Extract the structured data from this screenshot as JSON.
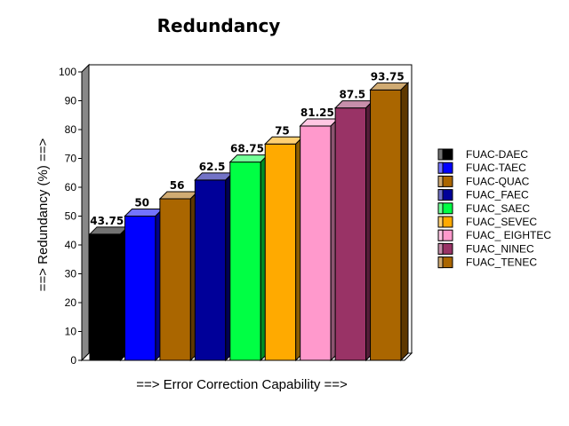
{
  "chart_data": {
    "type": "bar",
    "title": "Redundancy",
    "xlabel": "==> Error Correction Capability ==>",
    "ylabel": "==> Redundancy (%) ==>",
    "ylim": [
      0,
      100
    ],
    "yticks": [
      0,
      10,
      20,
      30,
      40,
      50,
      60,
      70,
      80,
      90,
      100
    ],
    "grid": false,
    "legend_position": "right",
    "categories": [
      "FUAC-DAEC",
      "FUAC-TAEC",
      "FUAC-QUAC",
      "FUAC_FAEC",
      "FUAC_SAEC",
      "FUAC_SEVEC",
      "FUAC_ EIGHTEC",
      "FUAC_NINEC",
      "FUAC_TENEC"
    ],
    "values": [
      43.75,
      50,
      56,
      62.5,
      68.75,
      75,
      81.25,
      87.5,
      93.75
    ],
    "value_labels": [
      "43.75",
      "50",
      "56",
      "62.5",
      "68.75",
      "75",
      "81.25",
      "87.5",
      "93.75"
    ],
    "colors": [
      "#000000",
      "#0000ff",
      "#aa6600",
      "#000099",
      "#00ff44",
      "#ffaa00",
      "#ff99cc",
      "#993366",
      "#aa6600"
    ]
  }
}
